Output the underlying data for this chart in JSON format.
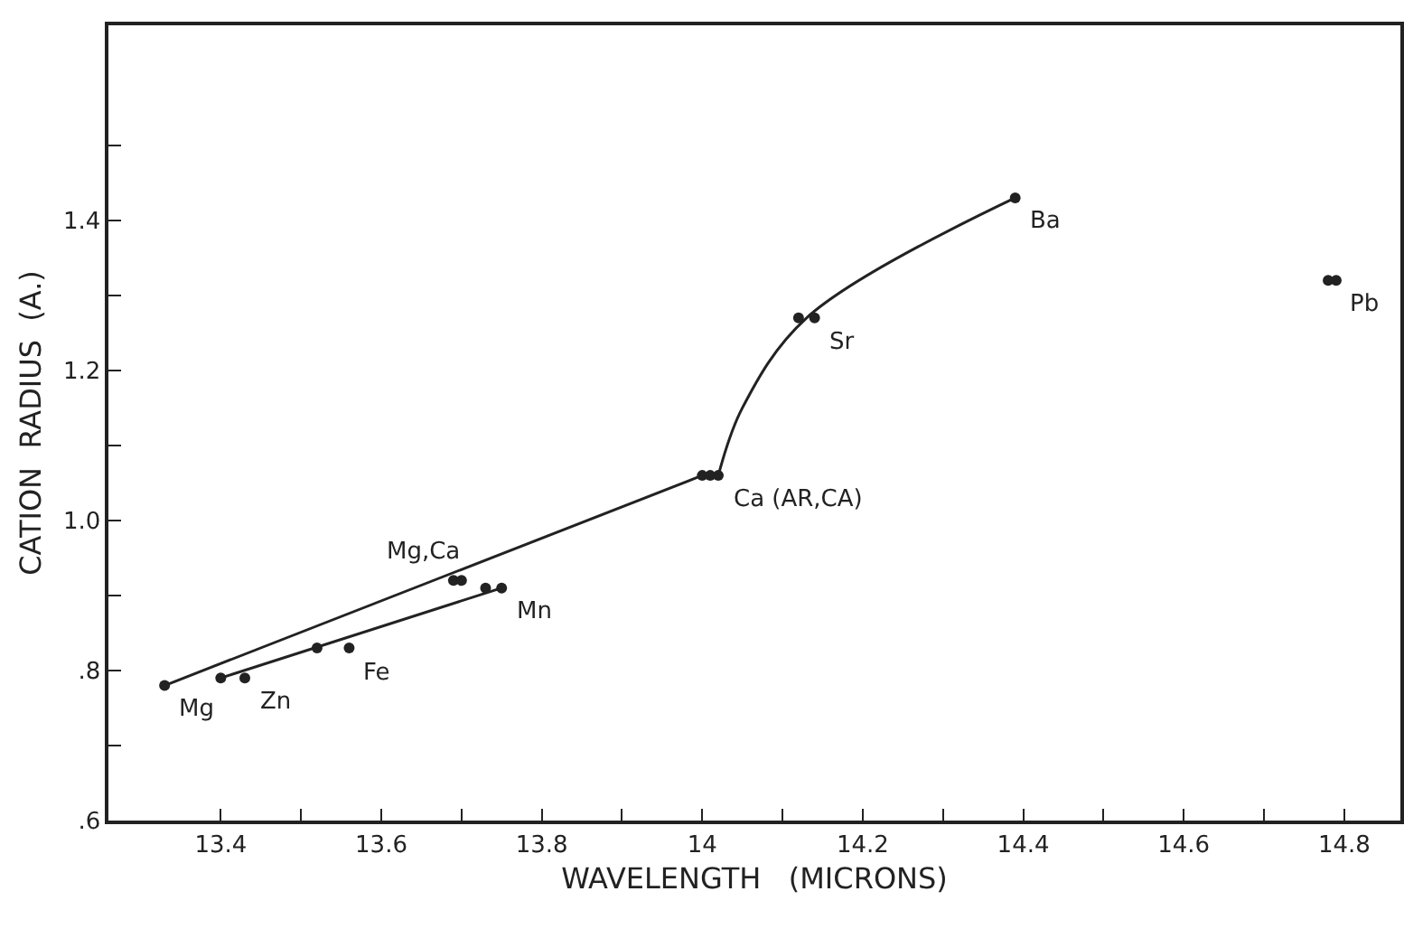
{
  "chart_data": {
    "type": "scatter",
    "xlabel": "WAVELENGTH   (MICRONS)",
    "ylabel": "CATION  RADIUS  (A.)",
    "xlim": [
      13.26,
      14.87
    ],
    "ylim": [
      0.6,
      1.66
    ],
    "xticks": [
      13.4,
      {
        "value": 13.5,
        "label": null
      },
      13.6,
      {
        "value": 13.7,
        "label": null
      },
      13.8,
      {
        "value": 13.9,
        "label": null
      },
      14.0,
      {
        "value": 14.1,
        "label": null
      },
      14.2,
      {
        "value": 14.3,
        "label": null
      },
      14.4,
      {
        "value": 14.5,
        "label": null
      },
      14.6,
      {
        "value": 14.7,
        "label": null
      },
      14.8
    ],
    "yticks": [
      {
        "value": 0.6,
        "label": ".6"
      },
      {
        "value": 0.7,
        "label": null
      },
      {
        "value": 0.8,
        "label": ".8"
      },
      {
        "value": 0.9,
        "label": null
      },
      {
        "value": 1.0,
        "label": "1.0"
      },
      {
        "value": 1.1,
        "label": null
      },
      {
        "value": 1.2,
        "label": "1.2"
      },
      {
        "value": 1.3,
        "label": null
      },
      {
        "value": 1.4,
        "label": "1.4"
      },
      {
        "value": 1.5,
        "label": null
      }
    ],
    "grid": false,
    "series": [
      {
        "type": "line",
        "marker": "none",
        "color": "#222222",
        "x": [
          13.33,
          14.0
        ],
        "values": [
          0.78,
          1.06
        ]
      },
      {
        "type": "line",
        "marker": "none",
        "color": "#222222",
        "x": [
          13.4,
          13.75
        ],
        "values": [
          0.79,
          0.91
        ]
      },
      {
        "type": "line",
        "marker": "none",
        "color": "#222222",
        "x": [
          14.02,
          14.05,
          14.13,
          14.39
        ],
        "values": [
          1.06,
          1.15,
          1.27,
          1.43
        ]
      },
      {
        "marker": "circle",
        "color": "#222222",
        "x": [
          13.33,
          13.4,
          13.43,
          13.52,
          13.56,
          13.69,
          13.7,
          13.73,
          13.75,
          14.0,
          14.01,
          14.02,
          14.12,
          14.14,
          14.39,
          14.78,
          14.79
        ],
        "values": [
          0.78,
          0.79,
          0.79,
          0.83,
          0.83,
          0.92,
          0.92,
          0.91,
          0.91,
          1.06,
          1.06,
          1.06,
          1.27,
          1.27,
          1.43,
          1.32,
          1.32
        ]
      }
    ],
    "annotations": [
      {
        "text": "Mg",
        "x": 13.33,
        "y": 0.78
      },
      {
        "text": "Zn",
        "x": 13.43,
        "y": 0.79
      },
      {
        "text": "Fe",
        "x": 13.56,
        "y": 0.83
      },
      {
        "text": "Mg,Ca",
        "x": 13.69,
        "y": 0.92
      },
      {
        "text": "Mn",
        "x": 13.75,
        "y": 0.91
      },
      {
        "text": "Ca (AR,CA)",
        "x": 14.02,
        "y": 1.06
      },
      {
        "text": "Sr",
        "x": 14.14,
        "y": 1.27
      },
      {
        "text": "Ba",
        "x": 14.39,
        "y": 1.43
      },
      {
        "text": "Pb",
        "x": 14.79,
        "y": 1.32
      }
    ]
  }
}
